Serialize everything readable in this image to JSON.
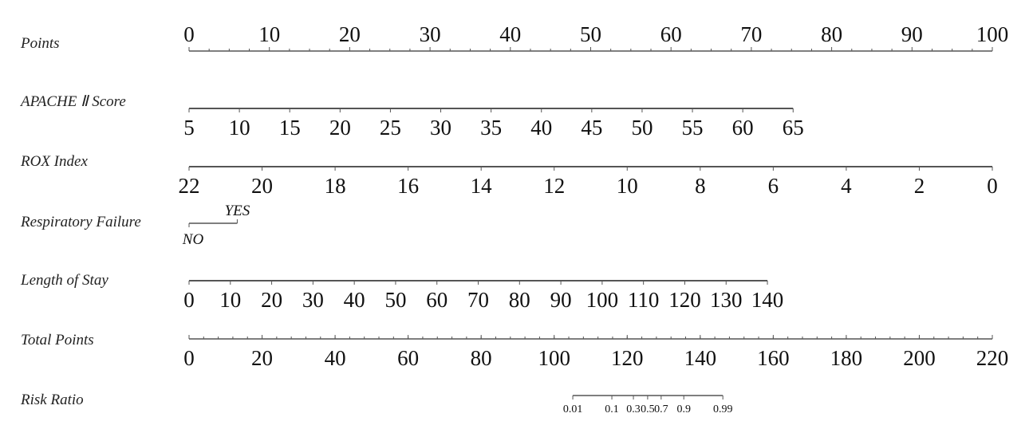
{
  "chart_data": {
    "type": "nomogram",
    "points_range": [
      0,
      100
    ],
    "rows": [
      {
        "label": "Points",
        "kind": "points",
        "ticks": [
          0,
          10,
          20,
          30,
          40,
          50,
          60,
          70,
          80,
          90,
          100
        ],
        "minor_step": 2.5
      },
      {
        "label": "APACHE Ⅱ Score",
        "kind": "continuous",
        "ticks": [
          5,
          10,
          15,
          20,
          25,
          30,
          35,
          40,
          45,
          50,
          55,
          60,
          65
        ],
        "points_at_min": 0,
        "points_at_max": 75.2
      },
      {
        "label": "ROX Index",
        "kind": "continuous",
        "ticks": [
          22,
          20,
          18,
          16,
          14,
          12,
          10,
          8,
          6,
          4,
          2,
          0
        ],
        "points_at_min": 0,
        "points_at_max": 100
      },
      {
        "label": "Respiratory Failure",
        "kind": "categorical",
        "categories": [
          "NO",
          "YES"
        ],
        "points": [
          0,
          6
        ]
      },
      {
        "label": "Length of Stay",
        "kind": "continuous",
        "ticks": [
          0,
          10,
          20,
          30,
          40,
          50,
          60,
          70,
          80,
          90,
          100,
          110,
          120,
          130,
          140
        ],
        "points_at_min": 0,
        "points_at_max": 72
      },
      {
        "label": "Total Points",
        "kind": "total",
        "ticks": [
          0,
          20,
          40,
          60,
          80,
          100,
          120,
          140,
          160,
          180,
          200,
          220
        ],
        "range": [
          0,
          220
        ],
        "minor_step": 4
      },
      {
        "label": "Risk Ratio",
        "kind": "risk",
        "ticks": [
          "0.01",
          "0.1",
          "0.3",
          "0.5",
          "0.7",
          "0.9",
          "0.99"
        ],
        "total_points": [
          105.1,
          115.8,
          121.7,
          125.6,
          129.3,
          135.5,
          146.2
        ]
      }
    ]
  }
}
